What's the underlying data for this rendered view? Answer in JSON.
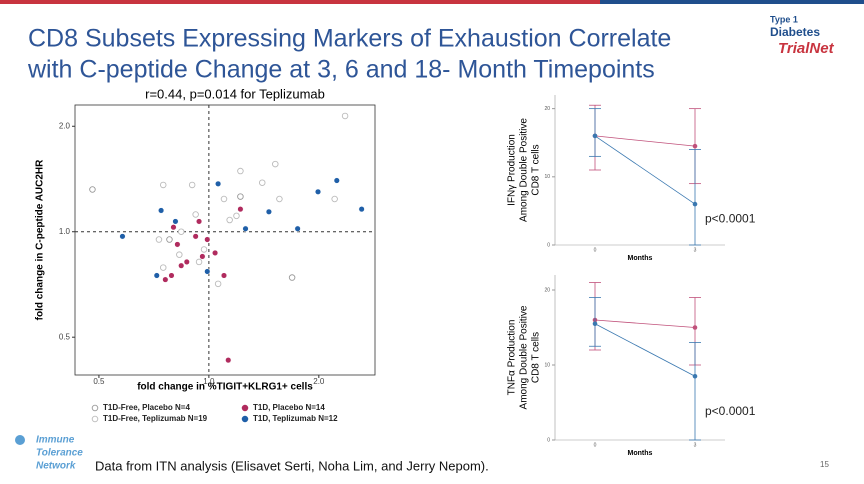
{
  "header": {
    "title": [
      "CD8 Subsets Expressing Markers of Exhaustion Correlate",
      "with C-peptide Change at 3, 6 and 18- Month Timepoints"
    ],
    "logo_top": [
      "Type 1",
      "Diabetes",
      "TrialNet"
    ],
    "logo_bottom": [
      "Immune",
      "Tolerance",
      "Network"
    ]
  },
  "footer": {
    "note": "Data from ITN analysis (Elisavet Serti, Noha Lim, and Jerry Nepom).",
    "page": "15"
  },
  "chart_data": [
    {
      "type": "scatter",
      "title": "r=0.44, p=0.014 for Teplizumab",
      "xlabel": "fold change in %TIGIT+KLRG1+ cells",
      "ylabel": "fold change in C-peptide AUC2HR",
      "xscale": "log",
      "yscale": "log",
      "xlim": [
        0.43,
        2.85
      ],
      "ylim": [
        0.39,
        2.3
      ],
      "xticks": [
        0.5,
        {
          "value": 1,
          "label": "1.0"
        },
        {
          "value": 2,
          "label": "2.0"
        }
      ],
      "yticks": [
        0.5,
        {
          "value": 1,
          "label": "1.0"
        },
        {
          "value": 2,
          "label": "2.0"
        }
      ],
      "vline": 1,
      "hline": 1,
      "series": [
        {
          "name": "T1D-Free, Placebo N=4",
          "color": "#999999",
          "marker": "open",
          "x": [
            0.48,
            0.78,
            1.22,
            1.69
          ],
          "values": [
            1.32,
            0.95,
            1.26,
            0.74
          ]
        },
        {
          "name": "T1D-Free, Teplizumab N=19",
          "color": "#bbbbbb",
          "marker": "open",
          "x": [
            2.36,
            0.75,
            0.9,
            0.92,
            0.73,
            0.84,
            0.75,
            0.83,
            1.1,
            1.14,
            1.22,
            1.52,
            1.4,
            1.56,
            2.21,
            0.97,
            1.06,
            0.94,
            1.19
          ],
          "values": [
            2.14,
            1.36,
            1.36,
            1.12,
            0.95,
            1.0,
            0.79,
            0.86,
            1.24,
            1.08,
            1.49,
            1.56,
            1.38,
            1.24,
            1.24,
            0.89,
            0.71,
            0.82,
            1.11
          ]
        },
        {
          "name": "T1D, Placebo N=14",
          "color": "#b02b5e",
          "marker": "filled",
          "x": [
            0.8,
            0.82,
            0.76,
            0.84,
            0.79,
            0.92,
            0.99,
            0.94,
            1.22,
            1.1,
            1.13,
            0.96,
            0.87,
            1.04
          ],
          "values": [
            1.03,
            0.92,
            0.73,
            0.8,
            0.75,
            0.97,
            0.95,
            1.07,
            1.16,
            0.75,
            0.43,
            0.85,
            0.82,
            0.87
          ]
        },
        {
          "name": "T1D, Teplizumab N=12",
          "color": "#1f5fa8",
          "marker": "filled",
          "x": [
            0.58,
            0.74,
            0.72,
            1.06,
            0.99,
            1.26,
            1.46,
            1.75,
            1.99,
            2.24,
            2.62,
            0.81
          ],
          "values": [
            0.97,
            1.15,
            0.75,
            1.37,
            0.77,
            1.02,
            1.14,
            1.02,
            1.3,
            1.4,
            1.16,
            1.07
          ]
        }
      ]
    },
    {
      "type": "line",
      "ylabel": [
        "IFNγ Production",
        "Among Double Positive",
        "CD8 T cells"
      ],
      "xlabel": "Months",
      "annotation": "p<0.0001",
      "categories": [
        "0",
        "3"
      ],
      "ylim": [
        0,
        22
      ],
      "yticks": [
        0,
        10,
        20
      ],
      "series": [
        {
          "color": "#c0507a",
          "values": [
            16,
            14.5
          ],
          "lower": [
            11,
            9
          ],
          "upper": [
            20.5,
            20
          ]
        },
        {
          "color": "#3a78b0",
          "values": [
            16,
            6
          ],
          "lower": [
            13,
            0
          ],
          "upper": [
            20,
            14
          ]
        }
      ]
    },
    {
      "type": "line",
      "ylabel": [
        "TNFα Production",
        "Among Double Positive",
        "CD8 T cells"
      ],
      "xlabel": "Months",
      "annotation": "p<0.0001",
      "categories": [
        "0",
        "3"
      ],
      "ylim": [
        0,
        22
      ],
      "yticks": [
        0,
        10,
        20
      ],
      "series": [
        {
          "color": "#c0507a",
          "values": [
            16,
            15
          ],
          "lower": [
            12,
            10
          ],
          "upper": [
            21,
            19
          ]
        },
        {
          "color": "#3a78b0",
          "values": [
            15.5,
            8.5
          ],
          "lower": [
            12.5,
            0
          ],
          "upper": [
            19,
            13
          ]
        }
      ]
    }
  ]
}
